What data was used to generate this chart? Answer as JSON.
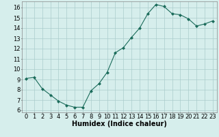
{
  "x": [
    0,
    1,
    2,
    3,
    4,
    5,
    6,
    7,
    8,
    9,
    10,
    11,
    12,
    13,
    14,
    15,
    16,
    17,
    18,
    19,
    20,
    21,
    22,
    23
  ],
  "y": [
    9.1,
    9.2,
    8.1,
    7.5,
    6.9,
    6.5,
    6.3,
    6.3,
    7.9,
    8.6,
    9.7,
    11.6,
    12.1,
    13.1,
    14.0,
    15.4,
    16.3,
    16.1,
    15.4,
    15.3,
    14.9,
    14.2,
    14.4,
    14.7
  ],
  "xlabel": "Humidex (Indice chaleur)",
  "xlim": [
    -0.5,
    23.5
  ],
  "ylim": [
    5.8,
    16.6
  ],
  "yticks": [
    6,
    7,
    8,
    9,
    10,
    11,
    12,
    13,
    14,
    15,
    16
  ],
  "xticks": [
    0,
    1,
    2,
    3,
    4,
    5,
    6,
    7,
    8,
    9,
    10,
    11,
    12,
    13,
    14,
    15,
    16,
    17,
    18,
    19,
    20,
    21,
    22,
    23
  ],
  "line_color": "#1a6b5a",
  "marker": "D",
  "marker_size": 2.0,
  "bg_color": "#d6eeec",
  "grid_color": "#aacccc",
  "xlabel_fontsize": 7,
  "tick_fontsize": 6
}
